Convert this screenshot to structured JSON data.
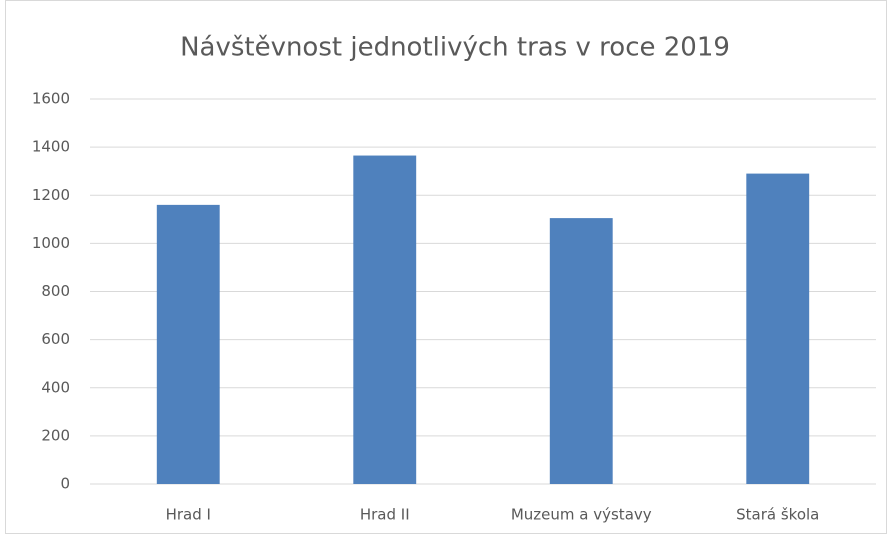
{
  "chart_data": {
    "type": "bar",
    "title": "Návštěvnost jednotlivých tras v roce 2019",
    "categories": [
      "Hrad I",
      "Hrad II",
      "Muzeum a výstavy",
      "Stará škola"
    ],
    "values": [
      1160,
      1365,
      1105,
      1290
    ],
    "color": "#4f81bd",
    "ylim": [
      0,
      1600
    ],
    "yticks": [
      0,
      200,
      400,
      600,
      800,
      1000,
      1200,
      1400,
      1600
    ],
    "grid": true
  }
}
